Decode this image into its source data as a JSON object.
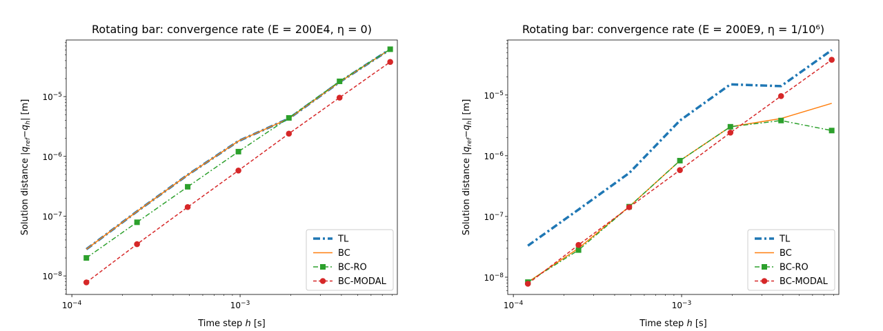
{
  "chart_data": [
    {
      "type": "line",
      "title": "Rotating bar: convergence rate (E = 200E4, η = 0)",
      "xlabel": "Time step h [s]",
      "ylabel": "Solution distance |q_ref − q_h| [m]",
      "xscale": "log",
      "yscale": "log",
      "xlim": [
        9.26e-05,
        0.0086
      ],
      "ylim": [
        4.9e-09,
        8.85e-05
      ],
      "xticks": [
        {
          "value": 0.0001,
          "base": "10",
          "exp": "−4"
        },
        {
          "value": 0.001,
          "base": "10",
          "exp": "−3"
        }
      ],
      "yticks": [
        {
          "value": 1e-08,
          "base": "10",
          "exp": "−8"
        },
        {
          "value": 1e-07,
          "base": "10",
          "exp": "−7"
        },
        {
          "value": 1e-06,
          "base": "10",
          "exp": "−6"
        },
        {
          "value": 1e-05,
          "base": "10",
          "exp": "−5"
        }
      ],
      "grid": false,
      "legend_position": "lower-right",
      "x": [
        0.000122,
        0.000244,
        0.000488,
        0.000977,
        0.00195,
        0.0039,
        0.0078
      ],
      "series": [
        {
          "name": "TL",
          "color": "#1f77b4",
          "style": "dashdot-thick",
          "marker": "none",
          "values": [
            2.8e-08,
            1.2e-07,
            4.9e-07,
            1.8e-06,
            4.3e-06,
            1.75e-05,
            6.2e-05
          ]
        },
        {
          "name": "BC",
          "color": "#ff7f0e",
          "style": "solid",
          "marker": "none",
          "values": [
            2.8e-08,
            1.2e-07,
            4.9e-07,
            1.8e-06,
            4.3e-06,
            1.75e-05,
            6.2e-05
          ]
        },
        {
          "name": "BC-RO",
          "color": "#2ca02c",
          "style": "dashdot",
          "marker": "square",
          "values": [
            2e-08,
            7.9e-08,
            3.1e-07,
            1.2e-06,
            4.4e-06,
            1.8e-05,
            6.2e-05
          ]
        },
        {
          "name": "BC-MODAL",
          "color": "#d62728",
          "style": "dashed",
          "marker": "circle",
          "values": [
            7.8e-09,
            3.4e-08,
            1.42e-07,
            5.8e-07,
            2.4e-06,
            9.6e-06,
            3.8e-05
          ]
        }
      ]
    },
    {
      "type": "line",
      "title": "Rotating bar: convergence rate (E = 200E9, η = 1/10⁶)",
      "xlabel": "Time step h [s]",
      "ylabel": "Solution distance |q_ref − q_h| [m]",
      "xscale": "log",
      "yscale": "log",
      "xlim": [
        9.26e-05,
        0.0086
      ],
      "ylim": [
        5.2e-09,
        8.05e-05
      ],
      "xticks": [
        {
          "value": 0.0001,
          "base": "10",
          "exp": "−4"
        },
        {
          "value": 0.001,
          "base": "10",
          "exp": "−3"
        }
      ],
      "yticks": [
        {
          "value": 1e-08,
          "base": "10",
          "exp": "−8"
        },
        {
          "value": 1e-07,
          "base": "10",
          "exp": "−7"
        },
        {
          "value": 1e-06,
          "base": "10",
          "exp": "−6"
        },
        {
          "value": 1e-05,
          "base": "10",
          "exp": "−5"
        }
      ],
      "grid": false,
      "legend_position": "lower-right",
      "x": [
        0.000122,
        0.000244,
        0.000488,
        0.000977,
        0.00195,
        0.0039,
        0.0078
      ],
      "series": [
        {
          "name": "TL",
          "color": "#1f77b4",
          "style": "dashdot-thick",
          "marker": "none",
          "values": [
            3.3e-08,
            1.3e-07,
            5.2e-07,
            3.8e-06,
            1.5e-05,
            1.4e-05,
            5.5e-05
          ]
        },
        {
          "name": "BC",
          "color": "#ff7f0e",
          "style": "solid",
          "marker": "none",
          "values": [
            8.3e-09,
            3e-08,
            1.45e-07,
            8.3e-07,
            3e-06,
            4.1e-06,
            7.3e-06
          ]
        },
        {
          "name": "BC-RO",
          "color": "#2ca02c",
          "style": "dashdot",
          "marker": "square",
          "values": [
            8.3e-09,
            2.8e-08,
            1.45e-07,
            8.3e-07,
            3e-06,
            3.8e-06,
            2.6e-06
          ]
        },
        {
          "name": "BC-MODAL",
          "color": "#d62728",
          "style": "dashed",
          "marker": "circle",
          "values": [
            7.8e-09,
            3.4e-08,
            1.42e-07,
            5.8e-07,
            2.4e-06,
            9.6e-06,
            3.8e-05
          ]
        }
      ]
    }
  ]
}
